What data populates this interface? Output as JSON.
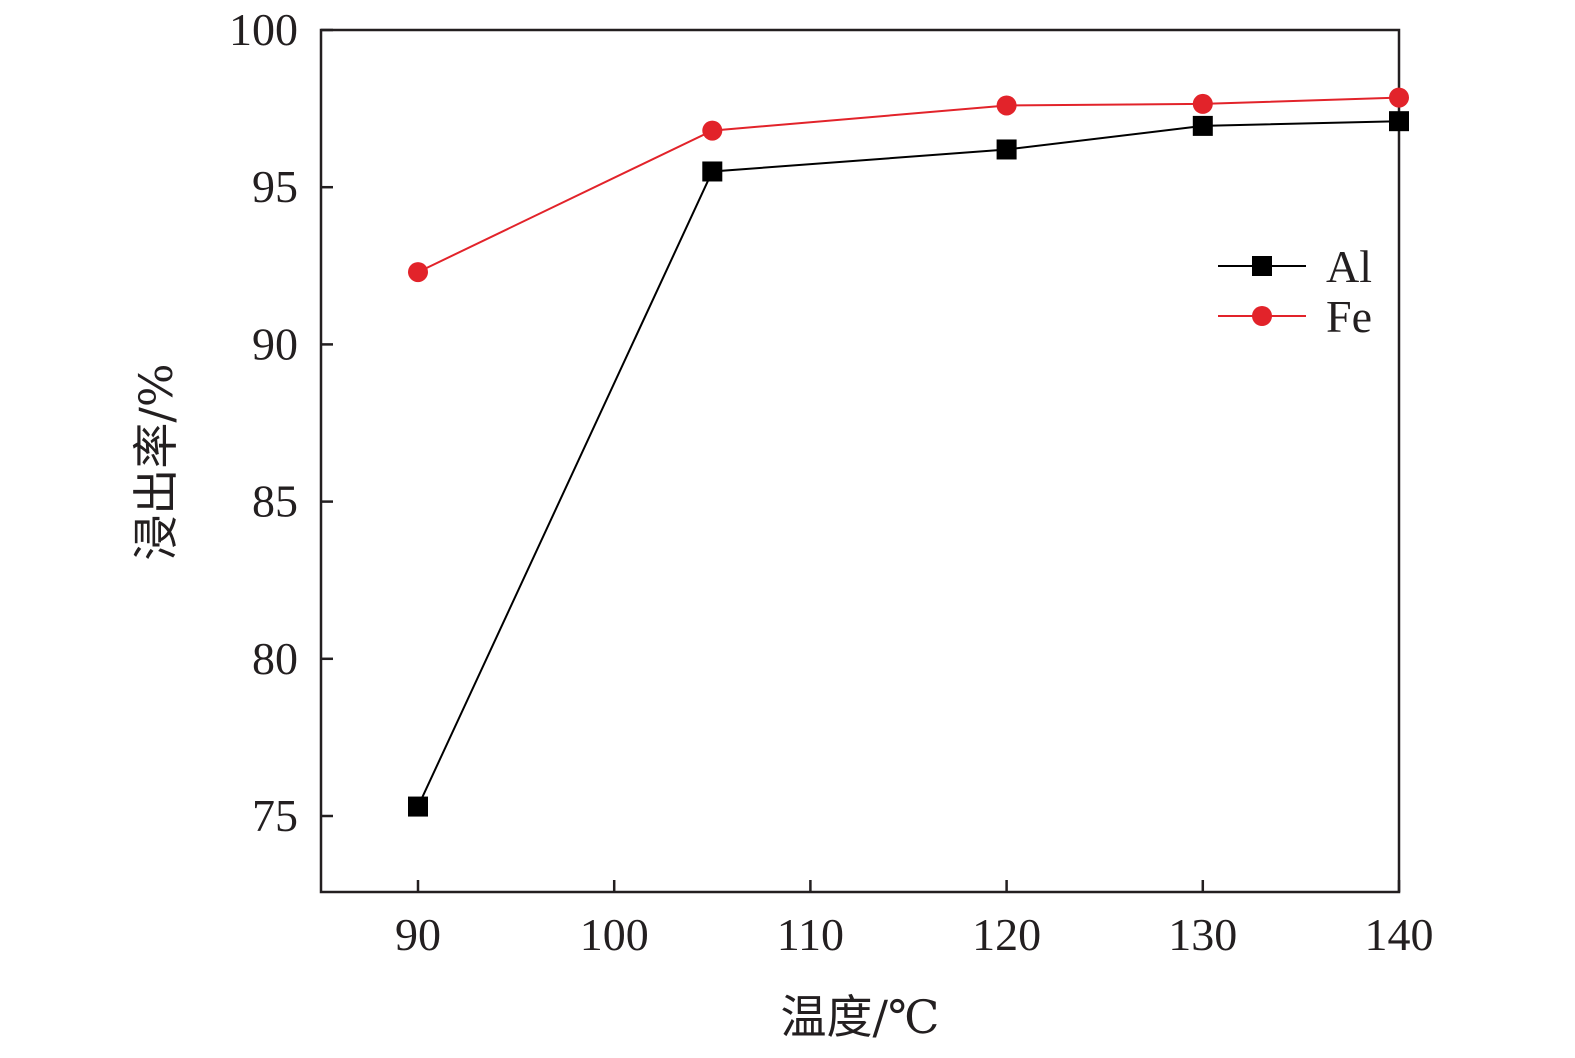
{
  "chart_data": {
    "type": "line",
    "title": "",
    "xlabel": "温度/℃",
    "ylabel": "浸出率/%",
    "xlim": [
      85,
      140
    ],
    "ylim": [
      72.6,
      100
    ],
    "xticks": [
      90,
      100,
      110,
      120,
      130,
      140
    ],
    "yticks": [
      75,
      80,
      85,
      90,
      95,
      100
    ],
    "grid": false,
    "legend_position": "upper-right",
    "series": [
      {
        "name": "Al",
        "marker": "square",
        "color": "#000000",
        "x": [
          90,
          105,
          120,
          130,
          140
        ],
        "y": [
          75.3,
          95.5,
          96.2,
          96.95,
          97.1
        ]
      },
      {
        "name": "Fe",
        "marker": "circle",
        "color": "#e2232a",
        "x": [
          90,
          105,
          120,
          130,
          140
        ],
        "y": [
          92.3,
          96.8,
          97.6,
          97.65,
          97.85
        ]
      }
    ]
  }
}
